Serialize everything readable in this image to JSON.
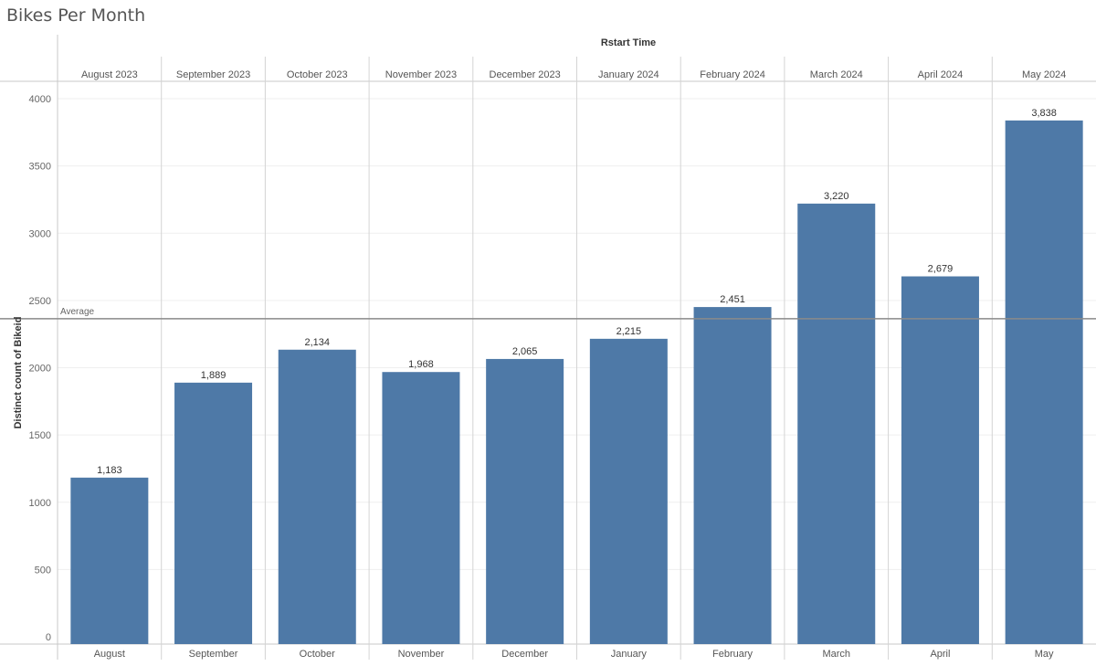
{
  "page": {
    "title": "Bikes Per Month"
  },
  "chart_data": {
    "type": "bar",
    "title": "Bikes Per Month",
    "column_header": "Rstart Time",
    "ylabel": "Distinct count of Bikeid",
    "xlabel": "",
    "ylim": [
      0,
      4000
    ],
    "yticks": [
      0,
      500,
      1000,
      1500,
      2000,
      2500,
      3000,
      3500,
      4000
    ],
    "column_headers": [
      "August 2023",
      "September 2023",
      "October 2023",
      "November 2023",
      "December 2023",
      "January 2024",
      "February 2024",
      "March 2024",
      "April 2024",
      "May 2024"
    ],
    "categories": [
      "August",
      "September",
      "October",
      "November",
      "December",
      "January",
      "February",
      "March",
      "April",
      "May"
    ],
    "values": [
      1183,
      1889,
      2134,
      1968,
      2065,
      2215,
      2451,
      3220,
      2679,
      3838
    ],
    "value_labels": [
      "1,183",
      "1,889",
      "2,134",
      "1,968",
      "2,065",
      "2,215",
      "2,451",
      "3,220",
      "2,679",
      "3,838"
    ],
    "reference_line": {
      "label": "Average",
      "value": 2364.2
    },
    "bar_color": "#4e79a7",
    "grid": true
  }
}
